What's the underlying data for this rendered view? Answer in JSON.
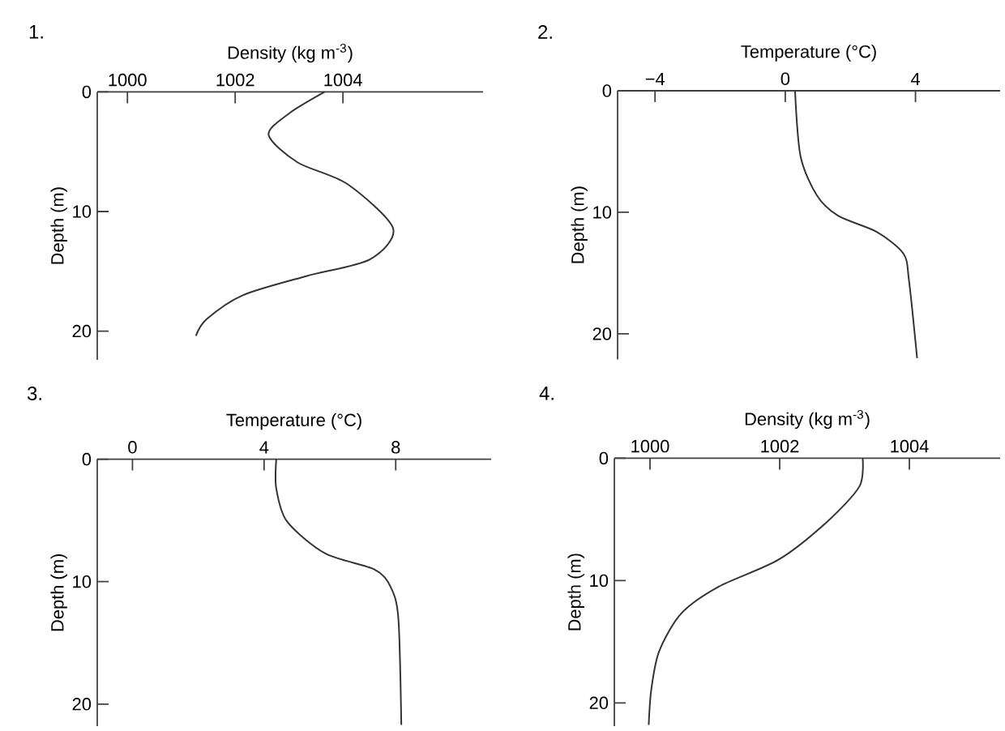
{
  "chart_data": [
    {
      "type": "line",
      "xlabel": "Density  (kg m$^{-3}$)",
      "ylabel": "Depth (m)",
      "annotations": [
        "1."
      ],
      "xlim": [
        999.44,
        1006.6
      ],
      "ylim": [
        22.4,
        0
      ],
      "xticks": [
        1000,
        1002,
        1004
      ],
      "yticks": [
        0,
        10,
        20
      ],
      "color": "#333333",
      "x": [
        1003.66,
        1003.0,
        1002.62,
        1003.16,
        1004.08,
        1004.93,
        1004.5,
        1003.32,
        1002.14,
        1001.47,
        1001.27
      ],
      "values": [
        0,
        1.8,
        3.6,
        5.9,
        7.7,
        11.4,
        14.0,
        15.4,
        17.0,
        19.0,
        20.4
      ]
    },
    {
      "type": "line",
      "xlabel": "Temperature  (°C)",
      "ylabel": "Depth (m)",
      "annotations": [
        "2."
      ],
      "xlim": [
        -5.15,
        6.6
      ],
      "ylim": [
        22.1,
        0
      ],
      "xticks": [
        {
          "value": -4,
          "label": "−4"
        },
        0,
        4
      ],
      "yticks": [
        0,
        10,
        20
      ],
      "color": "#333333",
      "x": [
        0.3,
        0.47,
        0.97,
        1.63,
        2.8,
        3.63,
        3.8,
        4.05
      ],
      "values": [
        0,
        5.4,
        8.6,
        10.3,
        11.6,
        13.4,
        15.6,
        22.0
      ]
    },
    {
      "type": "line",
      "xlabel": "Temperature  (°C)",
      "ylabel": "Depth (m)",
      "annotations": [
        "3."
      ],
      "xlim": [
        -1.07,
        10.9
      ],
      "ylim": [
        21.8,
        0
      ],
      "xticks": [
        0,
        4,
        8
      ],
      "yticks": [
        0,
        10,
        20
      ],
      "color": "#333333",
      "x": [
        4.37,
        4.37,
        4.7,
        5.86,
        7.35,
        7.84,
        8.08,
        8.17
      ],
      "values": [
        0,
        2.4,
        5.1,
        7.7,
        9.0,
        10.4,
        13.0,
        21.7
      ]
    },
    {
      "type": "line",
      "xlabel": "Density  (kg m$^{-3}$)",
      "ylabel": "Depth (m)",
      "annotations": [
        "4."
      ],
      "xlim": [
        999.45,
        1005.4
      ],
      "ylim": [
        21.9,
        0
      ],
      "xticks": [
        1000,
        1002,
        1004
      ],
      "yticks": [
        0,
        10,
        20
      ],
      "color": "#333333",
      "x": [
        1003.28,
        1003.23,
        1002.73,
        1001.98,
        1001.06,
        1000.48,
        1000.14,
        1000.02,
        999.98
      ],
      "values": [
        0,
        2.3,
        5.2,
        8.3,
        10.5,
        12.7,
        15.8,
        18.9,
        21.8
      ]
    }
  ]
}
